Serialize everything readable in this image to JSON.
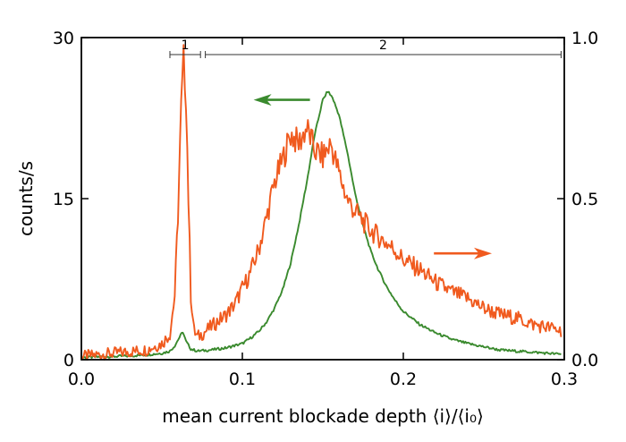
{
  "chart_data": {
    "type": "line",
    "xlabel": "mean current blockade depth ⟨i⟩/⟨i₀⟩",
    "ylabel_left": "counts/s",
    "ylabel_right": "",
    "xlim": [
      0.0,
      0.3
    ],
    "ylim_left": [
      0,
      30
    ],
    "ylim_right": [
      0.0,
      1.0
    ],
    "x_ticks": [
      {
        "value": 0.0,
        "label": "0.0"
      },
      {
        "value": 0.1,
        "label": "0.1"
      },
      {
        "value": 0.2,
        "label": "0.2"
      },
      {
        "value": 0.3,
        "label": "0.3"
      }
    ],
    "y_ticks_left": [
      {
        "value": 0,
        "label": "0"
      },
      {
        "value": 15,
        "label": "15"
      },
      {
        "value": 30,
        "label": "30"
      }
    ],
    "y_ticks_right": [
      {
        "value": 0.0,
        "label": "0.0"
      },
      {
        "value": 0.5,
        "label": "0.5"
      },
      {
        "value": 1.0,
        "label": "1.0"
      }
    ],
    "grid": false,
    "regions": [
      {
        "label": "1",
        "x_start": 0.055,
        "x_end": 0.074
      },
      {
        "label": "2",
        "x_start": 0.077,
        "x_end": 0.298
      }
    ],
    "annotations": [
      {
        "type": "arrow",
        "direction": "left",
        "color": "#3a8a2e",
        "x_from": 0.142,
        "x_to": 0.107,
        "y": 24.2,
        "axis": "left"
      },
      {
        "type": "arrow",
        "direction": "right",
        "color": "#f05a1e",
        "x_from": 0.219,
        "x_to": 0.255,
        "y": 0.33,
        "axis": "right"
      }
    ],
    "series": [
      {
        "axis": "left",
        "color": "#3a8a2e",
        "x": [
          0.0,
          0.01,
          0.02,
          0.03,
          0.04,
          0.05,
          0.055,
          0.058,
          0.061,
          0.063,
          0.065,
          0.068,
          0.072,
          0.08,
          0.09,
          0.1,
          0.105,
          0.11,
          0.115,
          0.12,
          0.125,
          0.13,
          0.135,
          0.14,
          0.145,
          0.15,
          0.153,
          0.156,
          0.16,
          0.165,
          0.17,
          0.175,
          0.18,
          0.185,
          0.19,
          0.195,
          0.2,
          0.21,
          0.22,
          0.23,
          0.24,
          0.25,
          0.26,
          0.27,
          0.28,
          0.29,
          0.298
        ],
        "values": [
          0.2,
          0.25,
          0.3,
          0.35,
          0.45,
          0.6,
          0.8,
          1.3,
          2.1,
          2.6,
          1.7,
          1.0,
          0.8,
          0.9,
          1.1,
          1.5,
          2.0,
          2.6,
          3.5,
          4.8,
          6.5,
          9.0,
          12.5,
          16.5,
          21.0,
          24.2,
          25.0,
          24.4,
          22.8,
          19.5,
          15.5,
          12.5,
          10.0,
          8.2,
          6.7,
          5.5,
          4.5,
          3.3,
          2.5,
          1.9,
          1.5,
          1.2,
          0.9,
          0.8,
          0.7,
          0.6,
          0.5
        ]
      },
      {
        "axis": "right",
        "color": "#f05a1e",
        "x": [
          0.0,
          0.01,
          0.02,
          0.03,
          0.04,
          0.05,
          0.055,
          0.058,
          0.06,
          0.062,
          0.0635,
          0.065,
          0.0665,
          0.068,
          0.07,
          0.072,
          0.075,
          0.08,
          0.085,
          0.09,
          0.095,
          0.1,
          0.105,
          0.11,
          0.115,
          0.12,
          0.125,
          0.13,
          0.135,
          0.14,
          0.145,
          0.15,
          0.155,
          0.16,
          0.165,
          0.17,
          0.175,
          0.18,
          0.185,
          0.19,
          0.195,
          0.2,
          0.21,
          0.22,
          0.23,
          0.24,
          0.25,
          0.26,
          0.27,
          0.28,
          0.29,
          0.298
        ],
        "values": [
          0.01,
          0.015,
          0.02,
          0.025,
          0.03,
          0.05,
          0.08,
          0.2,
          0.45,
          0.78,
          0.93,
          0.82,
          0.5,
          0.2,
          0.09,
          0.07,
          0.08,
          0.1,
          0.12,
          0.14,
          0.17,
          0.22,
          0.27,
          0.34,
          0.44,
          0.55,
          0.62,
          0.7,
          0.67,
          0.72,
          0.65,
          0.63,
          0.67,
          0.58,
          0.5,
          0.46,
          0.43,
          0.4,
          0.38,
          0.36,
          0.34,
          0.31,
          0.28,
          0.24,
          0.21,
          0.19,
          0.16,
          0.14,
          0.13,
          0.11,
          0.1,
          0.09
        ]
      }
    ]
  }
}
